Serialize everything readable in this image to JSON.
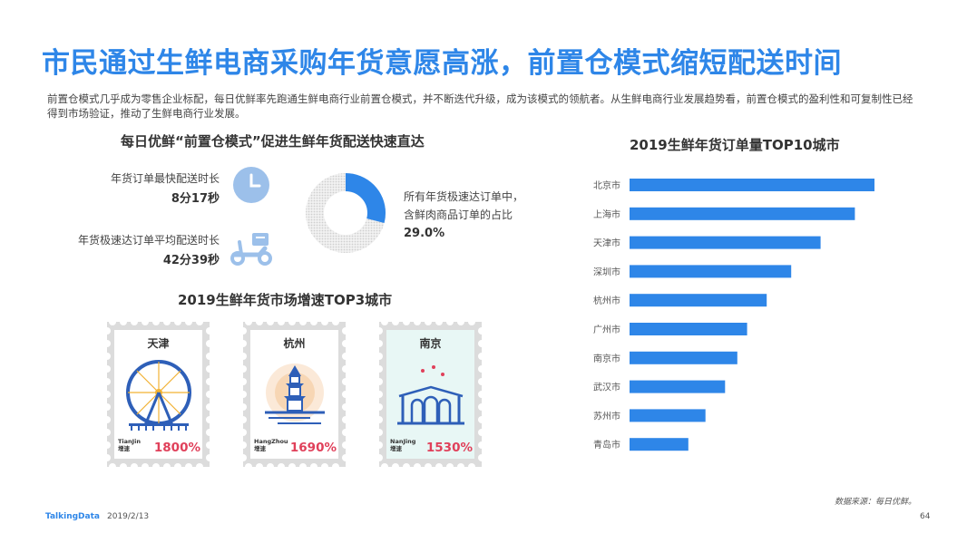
{
  "title": "市民通过生鲜电商采购年货意愿高涨，前置仓模式缩短配送时间",
  "intro": "前置仓模式几乎成为零售企业标配，每日优鲜率先跑通生鲜电商行业前置仓模式，并不断迭代升级，成为该模式的领航者。从生鲜电商行业发展趋势看，前置仓模式的盈利性和可复制性已经得到市场验证，推动了生鲜电商行业发展。",
  "left": {
    "section_title": "每日优鲜“前置仓模式”促进生鲜年货配送快速直达",
    "stat1": {
      "label": "年货订单最快配送时长",
      "value": "8分17秒",
      "icon": "clock-icon"
    },
    "stat2": {
      "label": "年货极速达订单平均配送时长",
      "value": "42分39秒",
      "icon": "scooter-icon"
    },
    "donut": {
      "line1": "所有年货极速达订单中，",
      "line2": "含鲜肉商品订单的占比",
      "value_label": "29.0%",
      "fraction": 0.29,
      "color": "#2e86e8"
    }
  },
  "stamps": {
    "section_title": "2019生鲜年货市场增速TOP3城市",
    "items": [
      {
        "city": "天津",
        "en": "TianJin",
        "sub": "增速",
        "pct": "1800%",
        "icon": "ferris-wheel-icon"
      },
      {
        "city": "杭州",
        "en": "HangZhou",
        "sub": "增速",
        "pct": "1690%",
        "icon": "pagoda-icon"
      },
      {
        "city": "南京",
        "en": "NanJing",
        "sub": "增速",
        "pct": "1530%",
        "icon": "city-gate-icon"
      }
    ]
  },
  "right": {
    "section_title": "2019生鲜年货订单量TOP10城市"
  },
  "chart_data": {
    "type": "bar",
    "orientation": "horizontal",
    "title": "2019生鲜年货订单量TOP10城市",
    "categories": [
      "北京市",
      "上海市",
      "天津市",
      "深圳市",
      "杭州市",
      "广州市",
      "南京市",
      "武汉市",
      "苏州市",
      "青岛市"
    ],
    "values": [
      100,
      92,
      78,
      66,
      56,
      48,
      44,
      39,
      31,
      24
    ],
    "bar_color": "#2e86e8",
    "grid": false
  },
  "footer": {
    "source": "数据来源：每日优鲜。",
    "brand": "TalkingData",
    "date": "2019/2/13",
    "page": "64"
  }
}
